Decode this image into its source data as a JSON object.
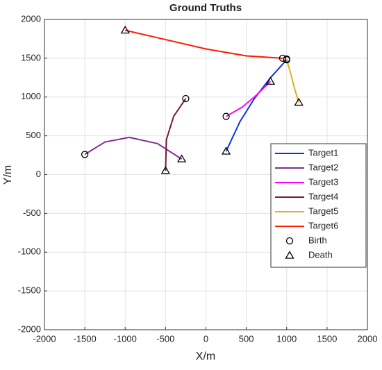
{
  "chart_data": {
    "type": "line",
    "title": "Ground Truths",
    "x_label": "X/m",
    "y_label": "Y/m",
    "xlim": [
      -2000,
      2000
    ],
    "ylim": [
      -2000,
      2000
    ],
    "xticks": [
      -2000,
      -1500,
      -1000,
      -500,
      0,
      500,
      1000,
      1500,
      2000
    ],
    "yticks": [
      -2000,
      -1500,
      -1000,
      -500,
      0,
      500,
      1000,
      1500,
      2000
    ],
    "grid": true,
    "series": [
      {
        "name": "Target1",
        "color": "#1030d8",
        "x": [
          1000,
          800,
          600,
          420,
          250
        ],
        "y": [
          1480,
          1250,
          980,
          680,
          300
        ]
      },
      {
        "name": "Target2",
        "color": "#7e2f8e",
        "x": [
          -1500,
          -1250,
          -950,
          -600,
          -300
        ],
        "y": [
          260,
          420,
          480,
          400,
          200
        ]
      },
      {
        "name": "Target3",
        "color": "#ff00ff",
        "x": [
          250,
          450,
          600,
          800
        ],
        "y": [
          750,
          870,
          1000,
          1200
        ]
      },
      {
        "name": "Target4",
        "color": "#7a1a33",
        "x": [
          -250,
          -400,
          -490,
          -500
        ],
        "y": [
          980,
          750,
          450,
          50
        ]
      },
      {
        "name": "Target5",
        "color": "#e0b020",
        "x": [
          1000,
          1050,
          1100,
          1150
        ],
        "y": [
          1490,
          1300,
          1100,
          930
        ]
      },
      {
        "name": "Target6",
        "color": "#ff1a00",
        "x": [
          950,
          500,
          0,
          -500,
          -1000
        ],
        "y": [
          1500,
          1530,
          1620,
          1740,
          1860
        ]
      }
    ],
    "markers": [
      {
        "name": "Birth",
        "symbol": "circle",
        "x": [
          1000,
          -1500,
          250,
          -250,
          1000,
          950
        ],
        "y": [
          1480,
          260,
          750,
          980,
          1490,
          1500
        ]
      },
      {
        "name": "Death",
        "symbol": "triangle",
        "x": [
          250,
          -300,
          800,
          -500,
          1150,
          -1000
        ],
        "y": [
          300,
          200,
          1200,
          50,
          930,
          1860
        ]
      }
    ]
  }
}
